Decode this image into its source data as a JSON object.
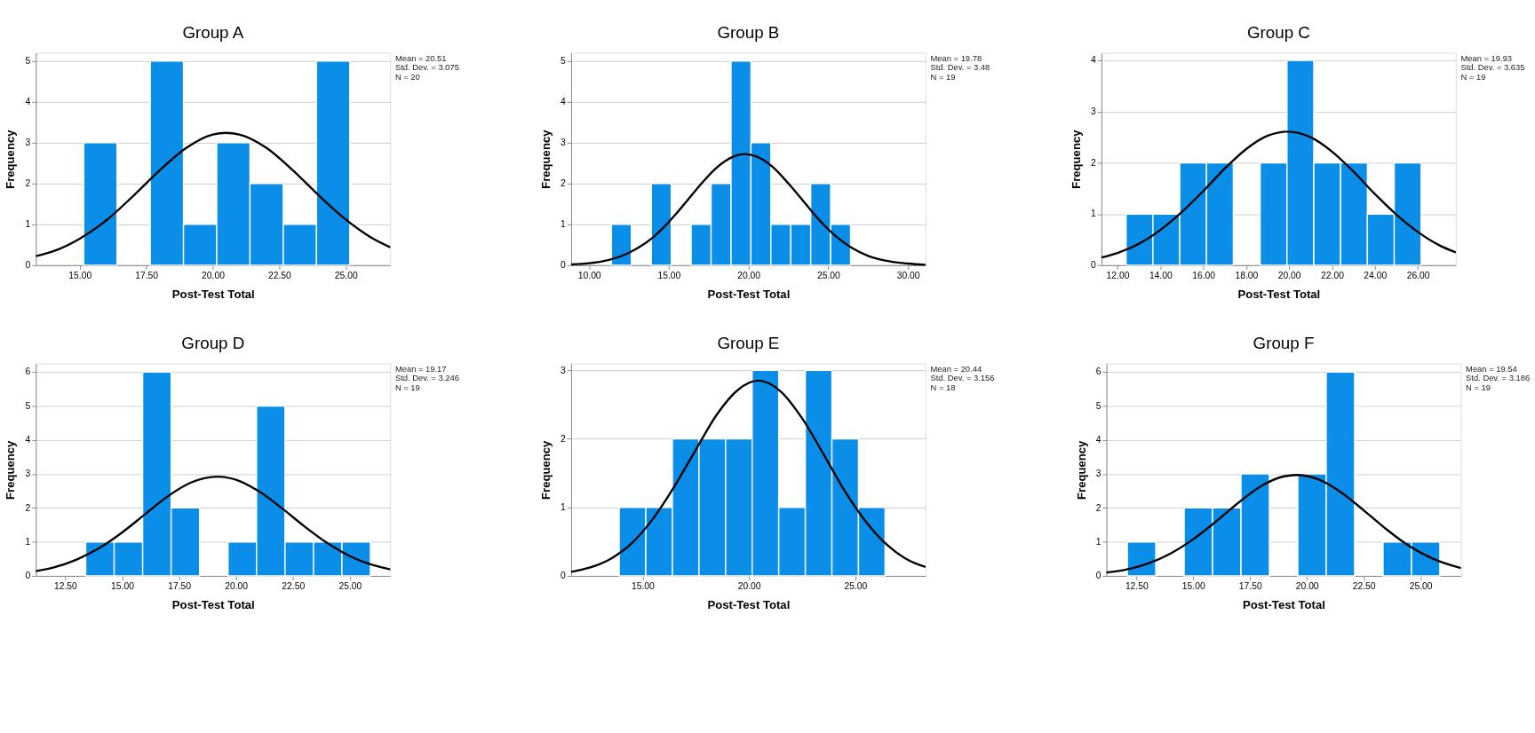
{
  "chart_data": [
    {
      "type": "histogram",
      "title": "Group A",
      "xlabel": "Post-Test Total",
      "ylabel": "Frequency",
      "color": "#0a8ee8",
      "grid": "y",
      "annotations": [
        "Mean = 20.51",
        "Std. Dev. = 3.075",
        "N = 20"
      ],
      "xlim": [
        13.35,
        26.67
      ],
      "xticks": [
        {
          "value": 15,
          "label": "15.00"
        },
        {
          "value": 17.5,
          "label": "17.50"
        },
        {
          "value": 20,
          "label": "20.00"
        },
        {
          "value": 22.5,
          "label": "22.50"
        },
        {
          "value": 25,
          "label": "25.00"
        }
      ],
      "ylim": [
        0,
        5.2
      ],
      "yticks": [
        0,
        1,
        2,
        3,
        4,
        5
      ],
      "bins": [
        15.15,
        16.4,
        17.65,
        18.9,
        20.15,
        21.4,
        22.65,
        23.9,
        25.15
      ],
      "values": [
        3,
        0,
        5,
        1,
        3,
        2,
        1,
        5
      ],
      "series": [
        {
          "type": "line",
          "color": "#000000",
          "x": [
            13.35,
            14,
            15,
            16,
            17,
            18,
            19,
            20,
            20.5,
            21,
            22,
            23,
            24,
            25,
            26,
            26.67
          ],
          "values": [
            0.22,
            0.34,
            0.65,
            1.1,
            1.69,
            2.32,
            2.87,
            3.2,
            3.24,
            3.2,
            2.88,
            2.33,
            1.7,
            1.12,
            0.66,
            0.44
          ]
        }
      ]
    },
    {
      "type": "histogram",
      "title": "Group B",
      "xlabel": "Post-Test Total",
      "ylabel": "Frequency",
      "color": "#0a8ee8",
      "grid": "y",
      "annotations": [
        "Mean = 19.78",
        "Std. Dev. = 3.48",
        "N = 19"
      ],
      "xlim": [
        8.87,
        31.1
      ],
      "xticks": [
        {
          "value": 10,
          "label": "10.00"
        },
        {
          "value": 15,
          "label": "15.00"
        },
        {
          "value": 20,
          "label": "20.00"
        },
        {
          "value": 25,
          "label": "25.00"
        },
        {
          "value": 30,
          "label": "30.00"
        }
      ],
      "ylim": [
        0,
        5.2
      ],
      "yticks": [
        0,
        1,
        2,
        3,
        4,
        5
      ],
      "bins": [
        11.4,
        12.65,
        13.9,
        15.15,
        16.4,
        17.65,
        18.9,
        20.15,
        21.4,
        22.65,
        23.9,
        25.15,
        26.4
      ],
      "values": [
        1,
        0,
        2,
        0,
        1,
        2,
        5,
        3,
        1,
        1,
        2,
        1
      ],
      "series": [
        {
          "type": "line",
          "color": "#000000",
          "x": [
            8.87,
            10,
            11,
            12,
            13,
            14,
            15,
            16,
            17,
            18,
            19,
            19.78,
            20.5,
            21.5,
            22.5,
            23.5,
            24.5,
            25.5,
            26.5,
            27.5,
            28.5,
            30,
            31.1
          ],
          "values": [
            0.02,
            0.05,
            0.11,
            0.22,
            0.41,
            0.68,
            1.06,
            1.51,
            1.98,
            2.39,
            2.65,
            2.72,
            2.66,
            2.41,
            2.0,
            1.54,
            1.08,
            0.7,
            0.42,
            0.23,
            0.12,
            0.04,
            0.01
          ]
        }
      ]
    },
    {
      "type": "histogram",
      "title": "Group C",
      "xlabel": "Post-Test Total",
      "ylabel": "Frequency",
      "color": "#0a8ee8",
      "grid": "y",
      "annotations": [
        "Mean = 19.93",
        "Std. Dev. = 3.635",
        "N = 19"
      ],
      "xlim": [
        11.25,
        27.77
      ],
      "xticks": [
        {
          "value": 12,
          "label": "12.00"
        },
        {
          "value": 14,
          "label": "14.00"
        },
        {
          "value": 16,
          "label": "16.00"
        },
        {
          "value": 18,
          "label": "18.00"
        },
        {
          "value": 20,
          "label": "20.00"
        },
        {
          "value": 22,
          "label": "22.00"
        },
        {
          "value": 24,
          "label": "24.00"
        },
        {
          "value": 26,
          "label": "26.00"
        }
      ],
      "ylim": [
        0,
        4.15
      ],
      "yticks": [
        0,
        1,
        2,
        3,
        4
      ],
      "bins": [
        12.4,
        13.65,
        14.9,
        16.15,
        17.4,
        18.65,
        19.9,
        21.15,
        22.4,
        23.65,
        24.9,
        26.15
      ],
      "values": [
        1,
        1,
        2,
        2,
        0,
        2,
        4,
        2,
        2,
        1,
        2
      ],
      "series": [
        {
          "type": "line",
          "color": "#000000",
          "x": [
            11.25,
            12,
            13,
            14,
            15,
            16,
            17,
            18,
            19,
            19.93,
            21,
            22,
            23,
            24,
            25,
            26,
            27,
            27.77
          ],
          "values": [
            0.15,
            0.24,
            0.42,
            0.69,
            1.04,
            1.45,
            1.89,
            2.27,
            2.53,
            2.61,
            2.5,
            2.22,
            1.83,
            1.39,
            0.99,
            0.65,
            0.39,
            0.25
          ]
        }
      ]
    },
    {
      "type": "histogram",
      "title": "Group D",
      "xlabel": "Post-Test Total",
      "ylabel": "Frequency",
      "color": "#0a8ee8",
      "grid": "y",
      "annotations": [
        "Mean = 19.17",
        "Std. Dev. = 3.246",
        "N = 19"
      ],
      "xlim": [
        11.21,
        26.77
      ],
      "xticks": [
        {
          "value": 12.5,
          "label": "12.50"
        },
        {
          "value": 15,
          "label": "15.00"
        },
        {
          "value": 17.5,
          "label": "17.50"
        },
        {
          "value": 20,
          "label": "20.00"
        },
        {
          "value": 22.5,
          "label": "22.50"
        },
        {
          "value": 25,
          "label": "25.00"
        }
      ],
      "ylim": [
        0,
        6.25
      ],
      "yticks": [
        0,
        1,
        2,
        3,
        4,
        5,
        6
      ],
      "bins": [
        13.4,
        14.65,
        15.9,
        17.15,
        18.4,
        19.65,
        20.9,
        22.15,
        23.4,
        24.65,
        25.9
      ],
      "values": [
        1,
        1,
        6,
        2,
        0,
        1,
        5,
        1,
        1,
        1
      ],
      "series": [
        {
          "type": "line",
          "color": "#000000",
          "x": [
            11.21,
            12,
            13,
            14,
            15,
            16,
            17,
            18,
            19.17,
            20,
            21,
            22,
            23,
            24,
            25,
            26,
            26.77
          ],
          "values": [
            0.14,
            0.25,
            0.48,
            0.82,
            1.28,
            1.81,
            2.34,
            2.74,
            2.92,
            2.83,
            2.49,
            2.0,
            1.46,
            0.97,
            0.58,
            0.32,
            0.19
          ]
        }
      ]
    },
    {
      "type": "histogram",
      "title": "Group E",
      "xlabel": "Post-Test Total",
      "ylabel": "Frequency",
      "color": "#0a8ee8",
      "grid": "y",
      "annotations": [
        "Mean = 20.44",
        "Std. Dev. = 3.156",
        "N = 18"
      ],
      "xlim": [
        11.64,
        28.3
      ],
      "xticks": [
        {
          "value": 15,
          "label": "15.00"
        },
        {
          "value": 20,
          "label": "20.00"
        },
        {
          "value": 25,
          "label": "25.00"
        }
      ],
      "ylim": [
        0,
        3.1
      ],
      "yticks": [
        0,
        1,
        2,
        3
      ],
      "bins": [
        13.9,
        15.15,
        16.4,
        17.65,
        18.9,
        20.15,
        21.4,
        22.65,
        23.9,
        25.15,
        26.4
      ],
      "values": [
        1,
        1,
        2,
        2,
        2,
        3,
        1,
        3,
        2,
        1
      ],
      "series": [
        {
          "type": "line",
          "color": "#000000",
          "x": [
            11.64,
            12.5,
            13.5,
            14.5,
            15.5,
            16.5,
            17.5,
            18.5,
            19.5,
            20.44,
            21.5,
            22.5,
            23.5,
            24.5,
            25.5,
            26.5,
            27.5,
            28.3
          ],
          "values": [
            0.06,
            0.12,
            0.25,
            0.48,
            0.84,
            1.31,
            1.84,
            2.36,
            2.72,
            2.85,
            2.69,
            2.3,
            1.78,
            1.24,
            0.79,
            0.45,
            0.23,
            0.13
          ]
        }
      ]
    },
    {
      "type": "histogram",
      "title": "Group F",
      "xlabel": "Post-Test Total",
      "ylabel": "Frequency",
      "color": "#0a8ee8",
      "grid": "y",
      "annotations": [
        "Mean = 19.54",
        "Std. Dev. = 3.186",
        "N = 19"
      ],
      "xlim": [
        11.18,
        26.77
      ],
      "xticks": [
        {
          "value": 12.5,
          "label": "12.50"
        },
        {
          "value": 15,
          "label": "15.00"
        },
        {
          "value": 17.5,
          "label": "17.50"
        },
        {
          "value": 20,
          "label": "20.00"
        },
        {
          "value": 22.5,
          "label": "22.50"
        },
        {
          "value": 25,
          "label": "25.00"
        }
      ],
      "ylim": [
        0,
        6.25
      ],
      "yticks": [
        0,
        1,
        2,
        3,
        4,
        5,
        6
      ],
      "bins": [
        12.1,
        13.35,
        14.6,
        15.85,
        17.1,
        18.35,
        19.6,
        20.85,
        22.1,
        23.35,
        24.6,
        25.85
      ],
      "values": [
        1,
        0,
        2,
        2,
        3,
        0,
        3,
        6,
        0,
        1,
        1
      ],
      "series": [
        {
          "type": "line",
          "color": "#000000",
          "x": [
            11.18,
            12,
            13,
            14,
            15,
            16,
            17,
            18,
            19,
            19.54,
            20.5,
            21.5,
            22.5,
            23.5,
            24.5,
            25.5,
            26.77
          ],
          "values": [
            0.1,
            0.18,
            0.36,
            0.66,
            1.08,
            1.6,
            2.16,
            2.65,
            2.93,
            2.97,
            2.84,
            2.46,
            1.93,
            1.37,
            0.88,
            0.52,
            0.23
          ]
        }
      ]
    }
  ]
}
